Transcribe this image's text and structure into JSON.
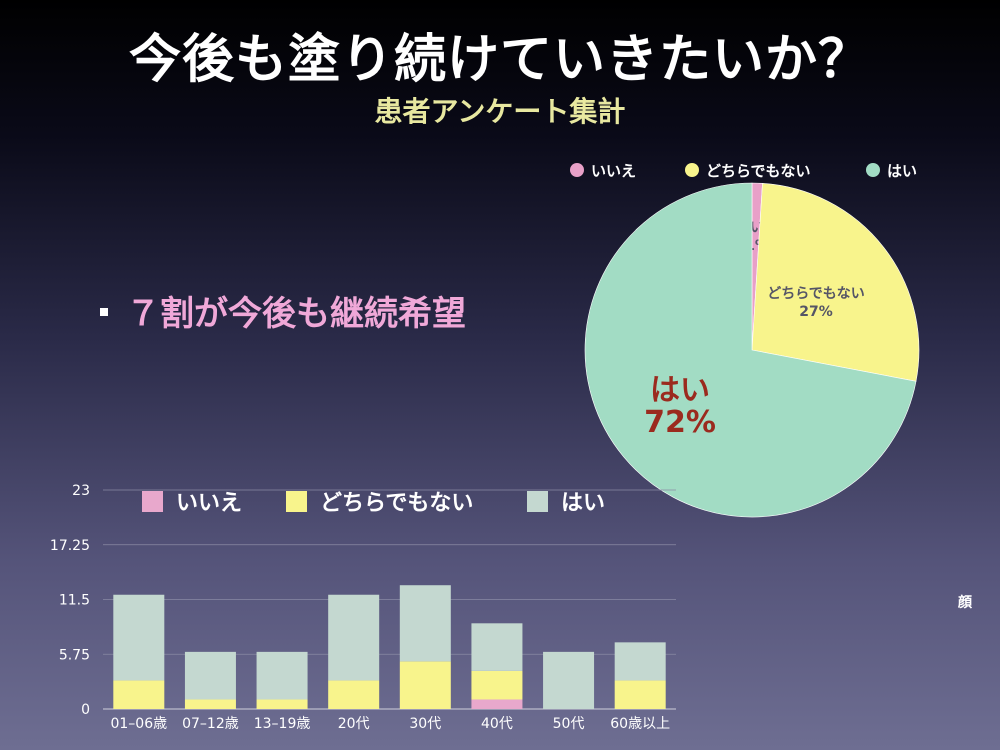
{
  "page": {
    "title": "今後も塗り続けていきたいか？",
    "subtitle": "患者アンケート集計",
    "bullet": "７割が今後も継続希望",
    "side_label": "顔"
  },
  "chart_data": [
    {
      "type": "pie",
      "legend_position": "top",
      "slices": [
        {
          "label": "いいえ",
          "value": 1,
          "display": "1%",
          "color": "#e8a0c8",
          "label_color": "#555566"
        },
        {
          "label": "どちらでもない",
          "value": 27,
          "display": "27%",
          "color": "#f8f48c",
          "label_color": "#555566"
        },
        {
          "label": "はい",
          "value": 72,
          "display": "72%",
          "color": "#a2dcc4",
          "label_color": "#9b2a1e"
        }
      ]
    },
    {
      "type": "bar",
      "stacked": true,
      "legend_position": "top",
      "categories": [
        "01–06歳",
        "07–12歳",
        "13–19歳",
        "20代",
        "30代",
        "40代",
        "50代",
        "60歳以上"
      ],
      "ylim": [
        0,
        23
      ],
      "yticks": [
        "0",
        "5.75",
        "11.5",
        "17.25",
        "23"
      ],
      "grid": true,
      "series": [
        {
          "name": "いいえ",
          "color": "#e8a8cc",
          "values": [
            0,
            0,
            0,
            0,
            0,
            1,
            0,
            0
          ]
        },
        {
          "name": "どちらでもない",
          "color": "#f8f48c",
          "values": [
            3,
            1,
            1,
            3,
            5,
            3,
            0,
            3
          ]
        },
        {
          "name": "はい",
          "color": "#c4d8d0",
          "values": [
            9,
            5,
            5,
            9,
            8,
            5,
            6,
            4
          ]
        }
      ]
    }
  ]
}
